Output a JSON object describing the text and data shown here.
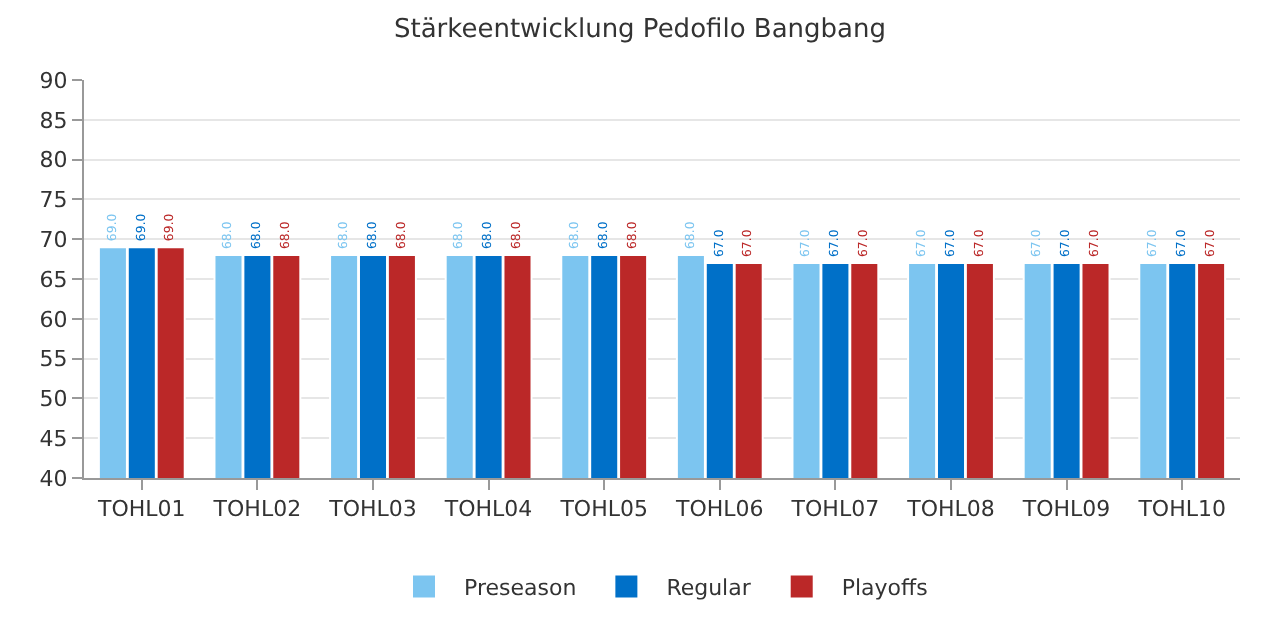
{
  "chart_data": {
    "type": "bar",
    "title": "Stärkeentwicklung Pedofilo Bangbang",
    "categories": [
      "TOHL01",
      "TOHL02",
      "TOHL03",
      "TOHL04",
      "TOHL05",
      "TOHL06",
      "TOHL07",
      "TOHL08",
      "TOHL09",
      "TOHL10"
    ],
    "series": [
      {
        "name": "Preseason",
        "color": "#7cc5f0",
        "values": [
          69,
          68,
          68,
          68,
          68,
          68,
          67,
          67,
          67,
          67
        ],
        "value_labels": [
          "69.0",
          "68.0",
          "68.0",
          "68.0",
          "68.0",
          "68.0",
          "67.0",
          "67.0",
          "67.0",
          "67.0"
        ]
      },
      {
        "name": "Regular",
        "color": "#0070c8",
        "values": [
          69,
          68,
          68,
          68,
          68,
          67,
          67,
          67,
          67,
          67
        ],
        "value_labels": [
          "69.0",
          "68.0",
          "68.0",
          "68.0",
          "68.0",
          "67.0",
          "67.0",
          "67.0",
          "67.0",
          "67.0"
        ]
      },
      {
        "name": "Playoffs",
        "color": "#bb2828",
        "values": [
          69,
          68,
          68,
          68,
          68,
          67,
          67,
          67,
          67,
          67
        ],
        "value_labels": [
          "69.0",
          "68.0",
          "68.0",
          "68.0",
          "68.0",
          "67.0",
          "67.0",
          "67.0",
          "67.0",
          "67.0"
        ]
      }
    ],
    "ylim": [
      40,
      90
    ],
    "yticks": [
      40,
      45,
      50,
      55,
      60,
      65,
      70,
      75,
      80,
      85,
      90
    ],
    "grid": "y",
    "legend": "bottom"
  }
}
